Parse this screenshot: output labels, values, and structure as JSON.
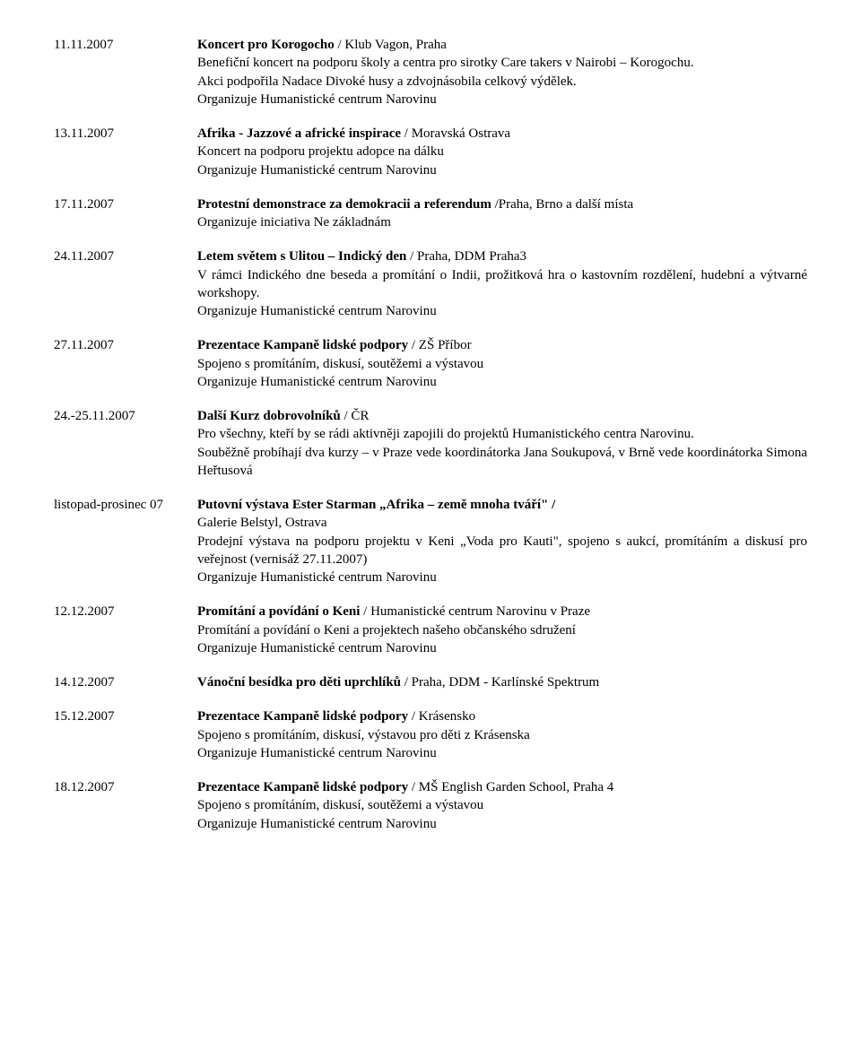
{
  "events": [
    {
      "date": "11.11.2007",
      "title_pre": "Koncert pro Korogocho",
      "title_suf": " / Klub Vagon, Praha",
      "lines": [
        "Benefiční koncert na podporu školy a centra pro sirotky Care takers v Nairobi – Korogochu.",
        "Akci podpořila Nadace Divoké husy a zdvojnásobila celkový výdělek.",
        "Organizuje Humanistické centrum Narovinu"
      ],
      "justify": false
    },
    {
      "date": "13.11.2007",
      "title_pre": "Afrika - Jazzové a africké inspirace",
      "title_suf": " / Moravská Ostrava",
      "lines": [
        "Koncert na podporu projektu adopce na dálku",
        "Organizuje Humanistické centrum Narovinu"
      ],
      "justify": false
    },
    {
      "date": "17.11.2007",
      "title_pre": "Protestní demonstrace za demokracii a referendum ",
      "title_suf": "/Praha, Brno a další místa",
      "lines": [
        "Organizuje iniciativa Ne základnám"
      ],
      "justify": false
    },
    {
      "date": "24.11.2007",
      "title_pre": "Letem světem s Ulitou – Indický den",
      "title_suf": " / Praha, DDM Praha3",
      "lines": [
        "V rámci Indického dne beseda a promítání o Indii, prožitková hra o kastovním rozdělení, hudební a výtvarné workshopy.",
        "Organizuje Humanistické centrum Narovinu"
      ],
      "justify": true
    },
    {
      "date": "27.11.2007",
      "title_pre": "Prezentace Kampaně lidské podpory",
      "title_suf": " / ZŠ Příbor",
      "lines": [
        "Spojeno s promítáním, diskusí, soutěžemi a výstavou",
        "Organizuje Humanistické centrum Narovinu"
      ],
      "justify": false
    },
    {
      "date": "24.-25.11.2007",
      "title_pre": "Další Kurz dobrovolníků",
      "title_suf": " / ČR",
      "lines": [
        "Pro všechny, kteří by se rádi aktivněji zapojili do projektů Humanistického centra Narovinu.",
        "Souběžně probíhají dva kurzy – v Praze vede koordinátorka Jana Soukupová, v Brně vede koordinátorka Simona Heřtusová"
      ],
      "justify": true
    },
    {
      "date": "listopad-prosinec 07",
      "title_pre": "Putovní výstava Ester Starman „Afrika – země mnoha tváří\" /",
      "title_suf": "",
      "lines": [
        "Galerie Belstyl, Ostrava",
        "Prodejní výstava na podporu projektu v Keni „Voda pro Kauti\", spojeno s aukcí, promítáním a diskusí pro veřejnost (vernisáž 27.11.2007)",
        "Organizuje Humanistické centrum Narovinu"
      ],
      "justify": true
    },
    {
      "date": "12.12.2007",
      "title_pre": "Promítání a povídání o Keni",
      "title_suf": " / Humanistické centrum Narovinu v Praze",
      "lines": [
        "Promítání a povídání o Keni a projektech našeho občanského sdružení",
        "Organizuje Humanistické centrum Narovinu"
      ],
      "justify": false
    },
    {
      "date": "14.12.2007",
      "title_pre": "Vánoční besídka pro děti uprchlíků",
      "title_suf": " / Praha, DDM - Karlínské Spektrum",
      "lines": [],
      "justify": false
    },
    {
      "date": "15.12.2007",
      "title_pre": "Prezentace Kampaně lidské podpory",
      "title_suf": " / Krásensko",
      "lines": [
        "Spojeno s promítáním, diskusí, výstavou pro děti z Krásenska",
        "Organizuje Humanistické centrum Narovinu"
      ],
      "justify": false
    },
    {
      "date": "18.12.2007",
      "title_pre": "Prezentace Kampaně lidské podpory",
      "title_suf": " / MŠ English Garden School, Praha 4",
      "lines": [
        "Spojeno s promítáním, diskusí, soutěžemi a výstavou",
        "Organizuje Humanistické centrum Narovinu"
      ],
      "justify": false
    }
  ]
}
